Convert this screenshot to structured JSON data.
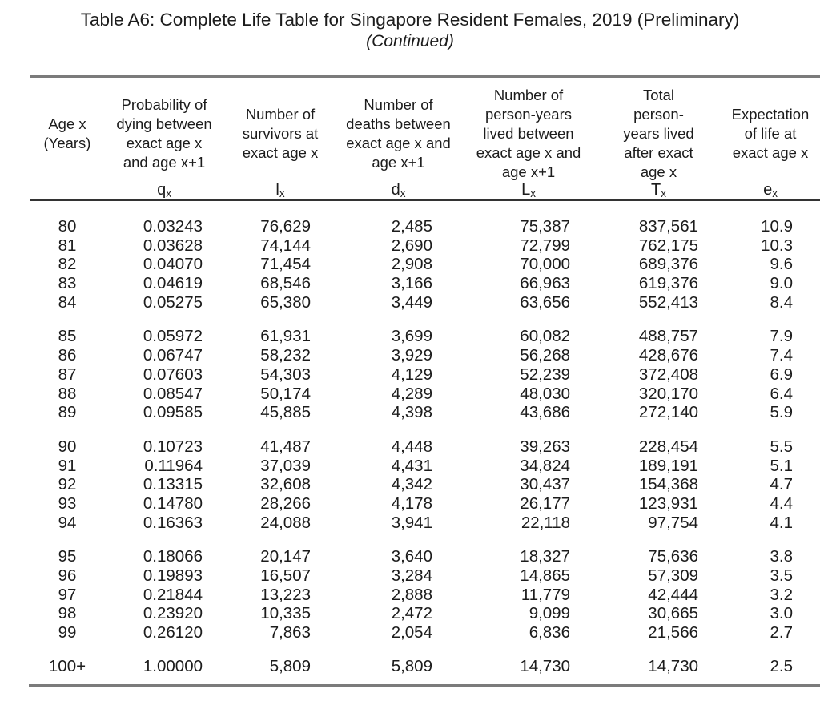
{
  "page": {
    "title": "Table A6: Complete Life Table for Singapore Resident Females, 2019 (Preliminary)",
    "subtitle": "(Continued)"
  },
  "colors": {
    "text": "#1c1c1c",
    "outer_rule": "#7b7b7b",
    "inner_rule": "#333333",
    "background": "#ffffff"
  },
  "table": {
    "columns": [
      {
        "id": "age",
        "header": "Age x\n(Years)",
        "symbol_base": "",
        "symbol_sub": ""
      },
      {
        "id": "qx",
        "header": "Probability of\ndying between\nexact age x\nand age x+1",
        "symbol_base": "q",
        "symbol_sub": "x"
      },
      {
        "id": "lx",
        "header": "Number of\nsurvivors at\nexact age x",
        "symbol_base": "l",
        "symbol_sub": "x"
      },
      {
        "id": "dx",
        "header": "Number of\ndeaths between\nexact age x and\nage x+1",
        "symbol_base": "d",
        "symbol_sub": "x"
      },
      {
        "id": "Lx",
        "header": "Number of\nperson-years\nlived between\nexact age x and\nage x+1",
        "symbol_base": "L",
        "symbol_sub": "x"
      },
      {
        "id": "Tx",
        "header": "Total\nperson-\nyears lived\nafter exact\nage x",
        "symbol_base": "T",
        "symbol_sub": "x"
      },
      {
        "id": "ex",
        "header": "Expectation\nof life at\nexact age x",
        "symbol_base": "e",
        "symbol_sub": "x"
      }
    ],
    "row_groups": [
      [
        [
          "80",
          "0.03243",
          "76,629",
          "2,485",
          "75,387",
          "837,561",
          "10.9"
        ],
        [
          "81",
          "0.03628",
          "74,144",
          "2,690",
          "72,799",
          "762,175",
          "10.3"
        ],
        [
          "82",
          "0.04070",
          "71,454",
          "2,908",
          "70,000",
          "689,376",
          "9.6"
        ],
        [
          "83",
          "0.04619",
          "68,546",
          "3,166",
          "66,963",
          "619,376",
          "9.0"
        ],
        [
          "84",
          "0.05275",
          "65,380",
          "3,449",
          "63,656",
          "552,413",
          "8.4"
        ]
      ],
      [
        [
          "85",
          "0.05972",
          "61,931",
          "3,699",
          "60,082",
          "488,757",
          "7.9"
        ],
        [
          "86",
          "0.06747",
          "58,232",
          "3,929",
          "56,268",
          "428,676",
          "7.4"
        ],
        [
          "87",
          "0.07603",
          "54,303",
          "4,129",
          "52,239",
          "372,408",
          "6.9"
        ],
        [
          "88",
          "0.08547",
          "50,174",
          "4,289",
          "48,030",
          "320,170",
          "6.4"
        ],
        [
          "89",
          "0.09585",
          "45,885",
          "4,398",
          "43,686",
          "272,140",
          "5.9"
        ]
      ],
      [
        [
          "90",
          "0.10723",
          "41,487",
          "4,448",
          "39,263",
          "228,454",
          "5.5"
        ],
        [
          "91",
          "0.11964",
          "37,039",
          "4,431",
          "34,824",
          "189,191",
          "5.1"
        ],
        [
          "92",
          "0.13315",
          "32,608",
          "4,342",
          "30,437",
          "154,368",
          "4.7"
        ],
        [
          "93",
          "0.14780",
          "28,266",
          "4,178",
          "26,177",
          "123,931",
          "4.4"
        ],
        [
          "94",
          "0.16363",
          "24,088",
          "3,941",
          "22,118",
          "97,754",
          "4.1"
        ]
      ],
      [
        [
          "95",
          "0.18066",
          "20,147",
          "3,640",
          "18,327",
          "75,636",
          "3.8"
        ],
        [
          "96",
          "0.19893",
          "16,507",
          "3,284",
          "14,865",
          "57,309",
          "3.5"
        ],
        [
          "97",
          "0.21844",
          "13,223",
          "2,888",
          "11,779",
          "42,444",
          "3.2"
        ],
        [
          "98",
          "0.23920",
          "10,335",
          "2,472",
          "9,099",
          "30,665",
          "3.0"
        ],
        [
          "99",
          "0.26120",
          "7,863",
          "2,054",
          "6,836",
          "21,566",
          "2.7"
        ]
      ],
      [
        [
          "100+",
          "1.00000",
          "5,809",
          "5,809",
          "14,730",
          "14,730",
          "2.5"
        ]
      ]
    ]
  }
}
